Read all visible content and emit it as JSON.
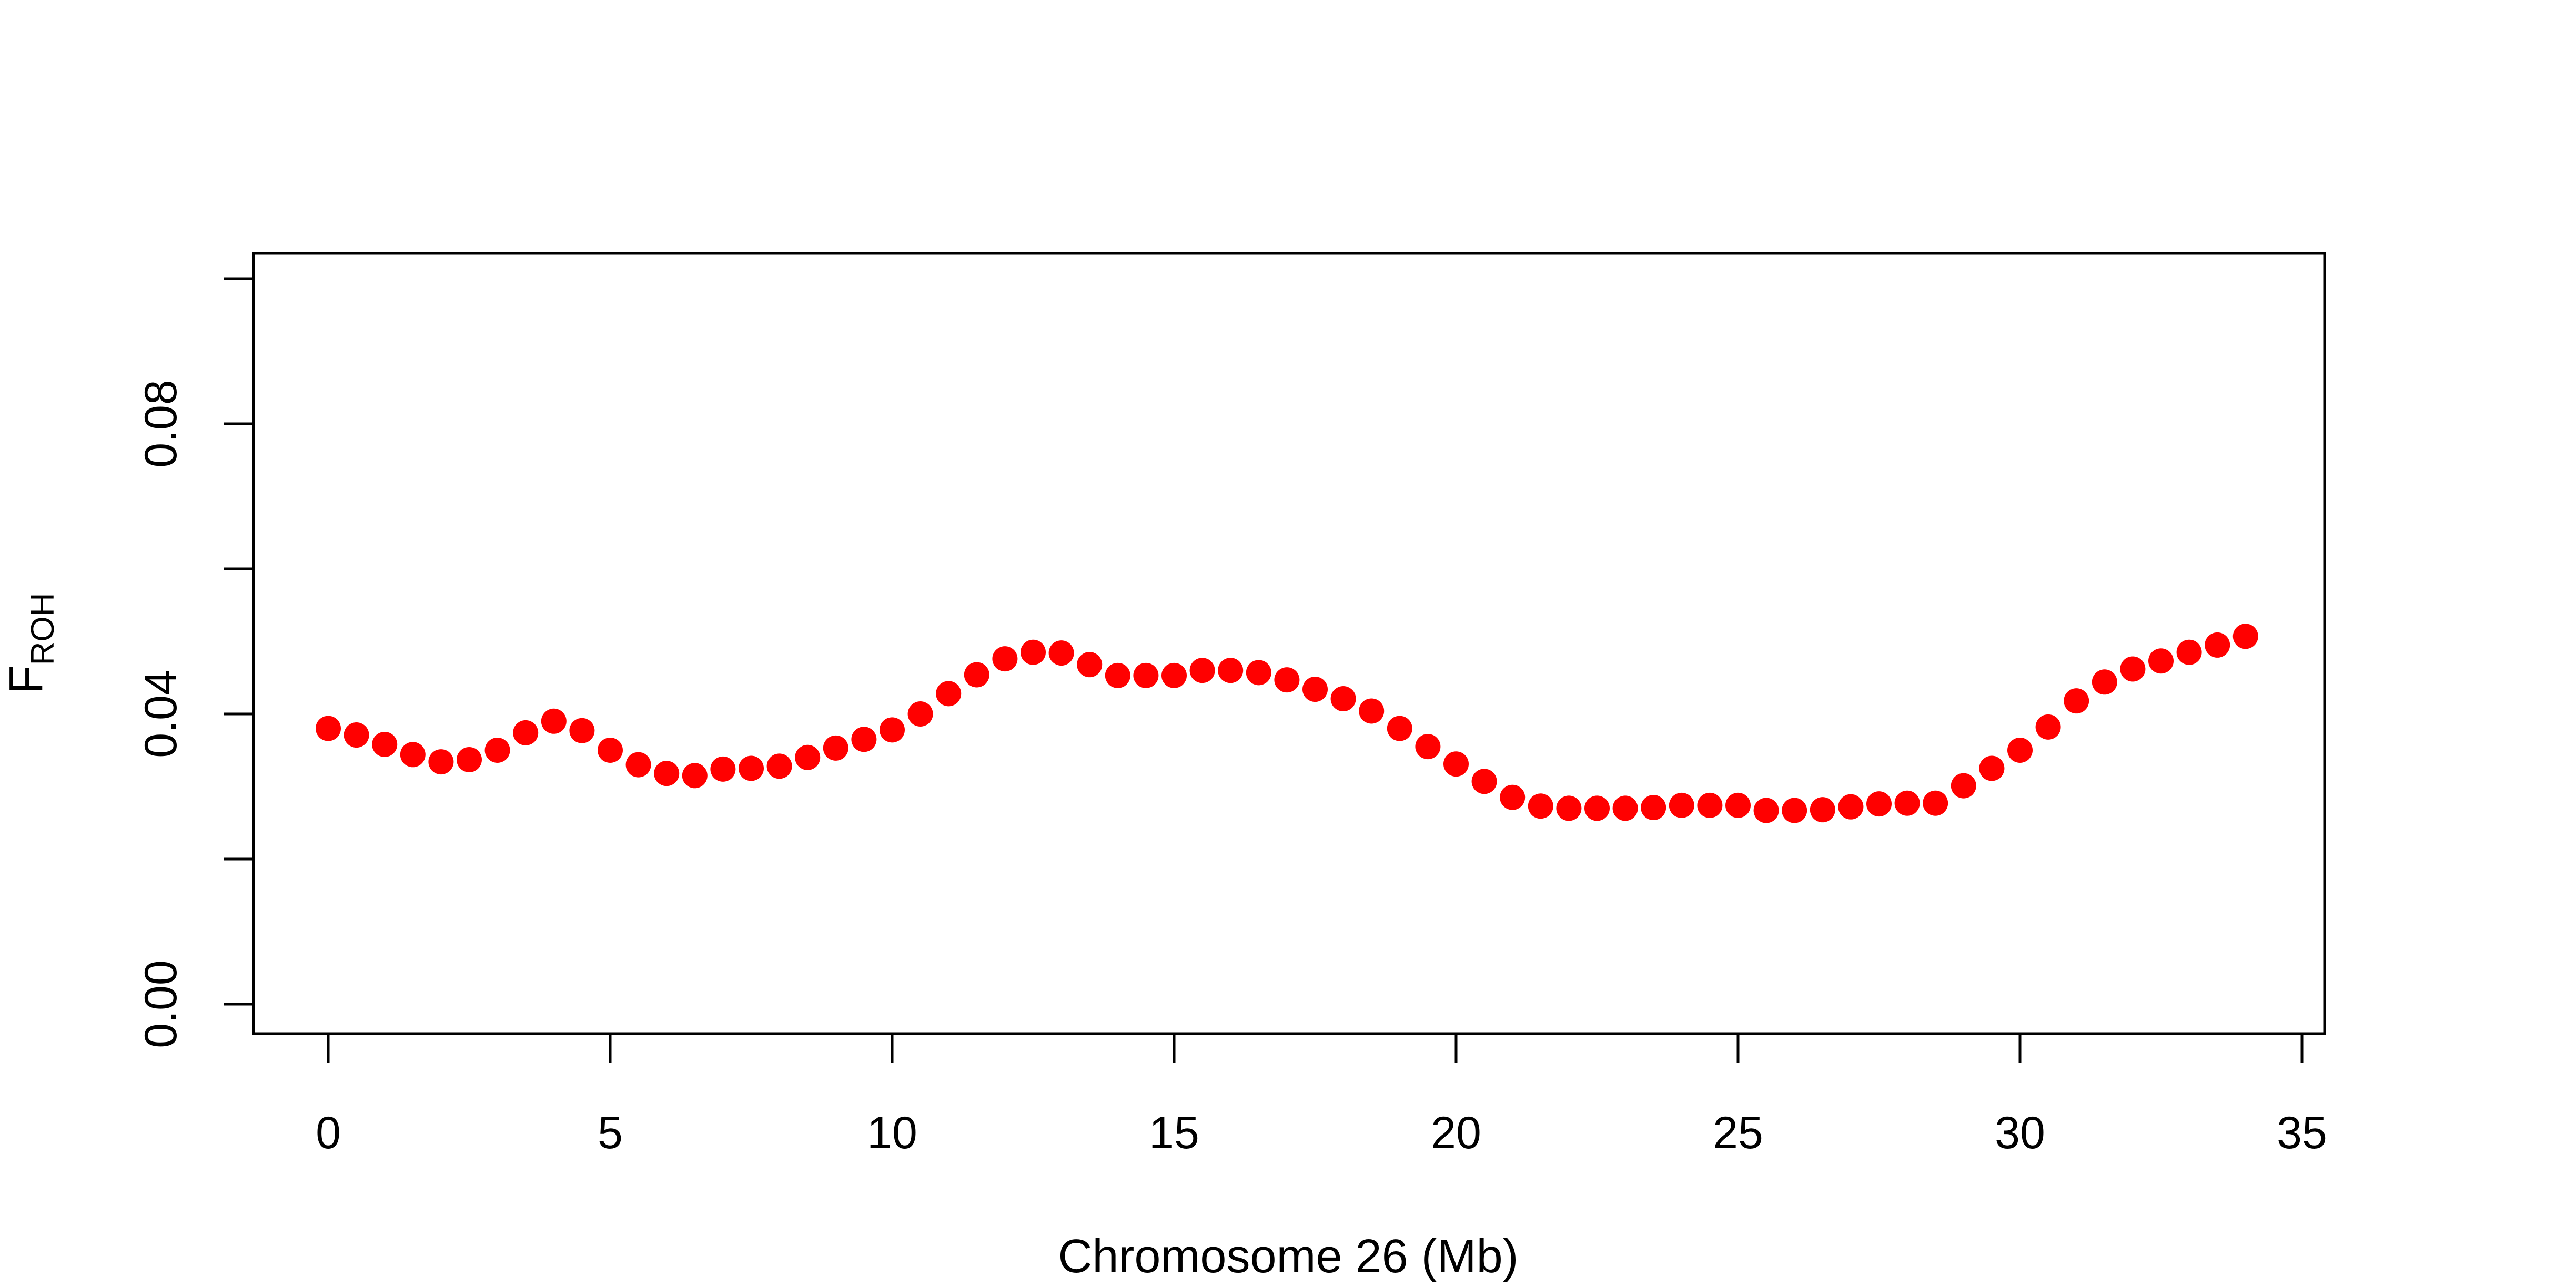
{
  "chart_data": {
    "type": "scatter",
    "xlabel": "Chromosome 26 (Mb)",
    "ylabel_main": "F",
    "ylabel_sub": "ROH",
    "xlim": [
      0,
      35
    ],
    "ylim": [
      0,
      0.1
    ],
    "x_ticks": [
      0,
      5,
      10,
      15,
      20,
      25,
      30,
      35
    ],
    "x_tick_labels": [
      "0",
      "5",
      "10",
      "15",
      "20",
      "25",
      "30",
      "35"
    ],
    "y_ticks": [
      0,
      0.02,
      0.04,
      0.06,
      0.08,
      0.1
    ],
    "y_tick_labels": [
      "0.00",
      "",
      "0.04",
      "",
      "0.08",
      ""
    ],
    "grid": false,
    "point_color": "#ff0000",
    "series": [
      {
        "x": [
          0,
          0.5,
          1,
          1.5,
          2,
          2.5,
          3,
          3.5,
          4,
          4.5,
          5,
          5.5,
          6,
          6.5,
          7,
          7.5,
          8,
          8.5,
          9,
          9.5,
          10,
          10.5,
          11,
          11.5,
          12,
          12.5,
          13,
          13.5,
          14,
          14.5,
          15,
          15.5,
          16,
          16.5,
          17,
          17.5,
          18,
          18.5,
          19,
          19.5,
          20,
          20.5,
          21,
          21.5,
          22,
          22.5,
          23,
          23.5,
          24,
          24.5,
          25,
          25.5,
          26,
          26.5,
          27,
          27.5,
          28,
          28.5,
          29,
          29.5,
          30,
          30.5,
          31,
          31.5,
          32,
          32.5,
          33,
          33.5,
          34
        ],
        "y": [
          0.038,
          0.0371,
          0.0358,
          0.0344,
          0.0334,
          0.0337,
          0.035,
          0.0374,
          0.039,
          0.0377,
          0.035,
          0.033,
          0.0318,
          0.0315,
          0.0324,
          0.0325,
          0.0328,
          0.034,
          0.0353,
          0.0365,
          0.0378,
          0.04,
          0.0428,
          0.0454,
          0.0476,
          0.0485,
          0.0484,
          0.0468,
          0.0453,
          0.0453,
          0.0453,
          0.046,
          0.046,
          0.0457,
          0.0447,
          0.0434,
          0.0421,
          0.0404,
          0.038,
          0.0355,
          0.0331,
          0.0307,
          0.0285,
          0.0273,
          0.027,
          0.027,
          0.027,
          0.0271,
          0.0274,
          0.0274,
          0.0274,
          0.0267,
          0.0267,
          0.0268,
          0.0272,
          0.0276,
          0.0277,
          0.0277,
          0.0301,
          0.0325,
          0.035,
          0.0382,
          0.0418,
          0.0444,
          0.0462,
          0.0473,
          0.0485,
          0.0495,
          0.0507
        ]
      }
    ]
  }
}
